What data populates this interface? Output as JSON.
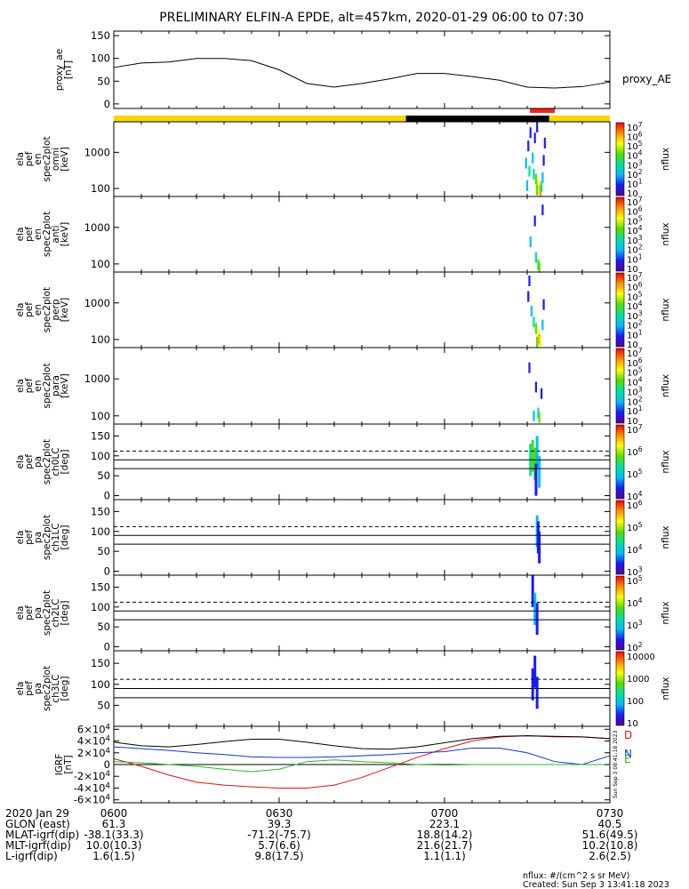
{
  "title": "PRELIMINARY ELFIN-A EPDE, alt=457km, 2020-01-29 06:00 to 07:30",
  "colors": {
    "day_bar": "#f5d800",
    "night_bar": "#000000",
    "science_zone": "#ff2020",
    "igrf_d": "#dd1111",
    "igrf_n": "#1133dd",
    "igrf_e": "#22bb22",
    "igrf_total": "#000000",
    "colorbar_stops": [
      "#ffffff",
      "#5a0099",
      "#1a1aff",
      "#00bfff",
      "#00e0a0",
      "#4ee000",
      "#ffff00",
      "#ff9000",
      "#ff0000"
    ]
  },
  "time_axis": {
    "range": [
      "06:00",
      "07:30"
    ],
    "ticks": [
      "0600",
      "0630",
      "0700",
      "0730"
    ]
  },
  "ephemeris": {
    "rows": [
      {
        "label": "2020 Jan 29",
        "values": [
          "0600",
          "0630",
          "0700",
          "0730"
        ]
      },
      {
        "label": "GLON (east)",
        "values": [
          "61.3",
          "39.3",
          "223.1",
          "40.5"
        ]
      },
      {
        "label": "MLAT-igrf(dip)",
        "values": [
          "-38.1(33.3)",
          "-71.2(-75.7)",
          "18.8(14.2)",
          "51.6(49.5)"
        ]
      },
      {
        "label": "MLT-igrf(dip)",
        "values": [
          "10.0(10.3)",
          "5.7(6.6)",
          "21.6(21.7)",
          "10.2(10.8)"
        ]
      },
      {
        "label": "L-igrf(dip)",
        "values": [
          "1.6(1.5)",
          "9.8(17.5)",
          "1.1(1.1)",
          "2.6(2.5)"
        ]
      }
    ]
  },
  "footer": {
    "units_line": "nflux: #/(cm^2 s sr MeV)",
    "created_line": "Created: Sun Sep  3 13:41:18 2023",
    "side_stamp": "Sun Sep 3 08:41:18 2023"
  },
  "chart_data": [
    {
      "id": "proxy_ae",
      "type": "line",
      "ylabel": [
        "proxy_ae",
        "[nT]"
      ],
      "legend": "proxy_AE",
      "yticks": [
        "0",
        "50",
        "100",
        "150"
      ],
      "ylim": [
        -10,
        160
      ],
      "x_minutes": [
        0,
        5,
        10,
        15,
        20,
        25,
        30,
        35,
        40,
        45,
        50,
        55,
        60,
        65,
        70,
        75,
        80,
        85,
        90
      ],
      "values": [
        80,
        90,
        92,
        100,
        100,
        95,
        75,
        45,
        37,
        45,
        55,
        67,
        67,
        60,
        52,
        37,
        35,
        38,
        48
      ]
    },
    {
      "id": "en_spec_omni",
      "type": "heatmap",
      "ylabel": [
        "ela",
        "pef",
        "en",
        "spec2plot",
        "omni",
        "[keV]"
      ],
      "yticks": [
        "100",
        "1000"
      ],
      "ylim_keV": [
        60,
        7000
      ],
      "log_y": true,
      "cbar_label": "nflux",
      "cbar_ticks": [
        "10",
        "10^1",
        "10^2",
        "10^3",
        "10^4",
        "10^5",
        "10^6",
        "10^7"
      ],
      "event_minutes": [
        74.5,
        78.5
      ],
      "cells": [
        {
          "t": 74.8,
          "e": 500,
          "l": 2
        },
        {
          "t": 75.2,
          "e": 1500,
          "l": 1
        },
        {
          "t": 75.6,
          "e": 3500,
          "l": 1
        },
        {
          "t": 76.0,
          "e": 700,
          "l": 2
        },
        {
          "t": 76.4,
          "e": 2500,
          "l": 1
        },
        {
          "t": 76.8,
          "e": 5000,
          "l": 1
        },
        {
          "t": 75.4,
          "e": 300,
          "l": 3
        },
        {
          "t": 76.2,
          "e": 250,
          "l": 3
        },
        {
          "t": 76.6,
          "e": 180,
          "l": 4
        },
        {
          "t": 77.0,
          "e": 130,
          "l": 5
        },
        {
          "t": 77.2,
          "e": 100,
          "l": 5
        },
        {
          "t": 76.8,
          "e": 90,
          "l": 4
        },
        {
          "t": 77.4,
          "e": 85,
          "l": 6
        },
        {
          "t": 77.6,
          "e": 110,
          "l": 3
        },
        {
          "t": 77.8,
          "e": 200,
          "l": 2
        },
        {
          "t": 78.0,
          "e": 600,
          "l": 1
        },
        {
          "t": 78.2,
          "e": 1800,
          "l": 1
        },
        {
          "t": 75.0,
          "e": 120,
          "l": 2
        }
      ]
    },
    {
      "id": "en_spec_anti",
      "type": "heatmap",
      "ylabel": [
        "ela",
        "pef",
        "en",
        "spec2plot",
        "anti",
        "[keV]"
      ],
      "yticks": [
        "100",
        "1000"
      ],
      "ylim_keV": [
        60,
        7000
      ],
      "log_y": true,
      "cbar_label": "nflux",
      "cbar_ticks": [
        "10",
        "10^1",
        "10^2",
        "10^3",
        "10^4",
        "10^5",
        "10^6",
        "10^7"
      ],
      "event_minutes": [
        74.5,
        78.5
      ],
      "cells": [
        {
          "t": 75.6,
          "e": 400,
          "l": 2
        },
        {
          "t": 76.4,
          "e": 1500,
          "l": 1
        },
        {
          "t": 77.8,
          "e": 3000,
          "l": 1
        },
        {
          "t": 76.6,
          "e": 150,
          "l": 3
        },
        {
          "t": 77.0,
          "e": 95,
          "l": 4
        },
        {
          "t": 77.2,
          "e": 80,
          "l": 4
        }
      ]
    },
    {
      "id": "en_spec_perp",
      "type": "heatmap",
      "ylabel": [
        "ela",
        "pef",
        "en",
        "spec2plot",
        "perp",
        "[keV]"
      ],
      "yticks": [
        "100",
        "1000"
      ],
      "ylim_keV": [
        60,
        7000
      ],
      "log_y": true,
      "cbar_label": "nflux",
      "cbar_ticks": [
        "10",
        "10^1",
        "10^2",
        "10^3",
        "10^4",
        "10^5",
        "10^6",
        "10^7"
      ],
      "event_minutes": [
        74.5,
        78.5
      ],
      "cells": [
        {
          "t": 75.2,
          "e": 1500,
          "l": 1
        },
        {
          "t": 75.8,
          "e": 600,
          "l": 2
        },
        {
          "t": 76.2,
          "e": 300,
          "l": 3
        },
        {
          "t": 76.6,
          "e": 200,
          "l": 4
        },
        {
          "t": 77.0,
          "e": 140,
          "l": 5
        },
        {
          "t": 77.2,
          "e": 100,
          "l": 6
        },
        {
          "t": 77.4,
          "e": 90,
          "l": 5
        },
        {
          "t": 76.8,
          "e": 85,
          "l": 4
        },
        {
          "t": 77.8,
          "e": 250,
          "l": 2
        },
        {
          "t": 78.0,
          "e": 900,
          "l": 1
        },
        {
          "t": 75.4,
          "e": 4000,
          "l": 1
        }
      ]
    },
    {
      "id": "en_spec_para",
      "type": "heatmap",
      "ylabel": [
        "ela",
        "pef",
        "en",
        "spec2plot",
        "para",
        "[keV]"
      ],
      "yticks": [
        "100",
        "1000"
      ],
      "ylim_keV": [
        60,
        7000
      ],
      "log_y": true,
      "cbar_label": "nflux",
      "cbar_ticks": [
        "10",
        "10^1",
        "10^2",
        "10^3",
        "10^4",
        "10^5",
        "10^6",
        "10^7"
      ],
      "event_minutes": [
        74.5,
        78.5
      ],
      "cells": [
        {
          "t": 75.4,
          "e": 2000,
          "l": 1
        },
        {
          "t": 76.6,
          "e": 600,
          "l": 1
        },
        {
          "t": 77.0,
          "e": 120,
          "l": 3
        },
        {
          "t": 77.2,
          "e": 90,
          "l": 4
        },
        {
          "t": 76.2,
          "e": 100,
          "l": 2
        },
        {
          "t": 77.6,
          "e": 400,
          "l": 1
        }
      ]
    },
    {
      "id": "pa_spec_ch0",
      "type": "heatmap",
      "ylabel": [
        "ela",
        "pef",
        "pa",
        "spec2plot",
        "ch0LC",
        "[deg]"
      ],
      "yticks": [
        "0",
        "50",
        "100",
        "150"
      ],
      "ylim": [
        -10,
        180
      ],
      "lines_solid": [
        68,
        90
      ],
      "lines_dashed": [
        112
      ],
      "cbar_label": "nflux",
      "cbar_ticks": [
        "10^4",
        "10^5",
        "10^6",
        "10^7"
      ],
      "event_minutes": [
        74.5,
        78.5
      ],
      "cells": [
        {
          "t": 75.6,
          "p": 90,
          "l": 3
        },
        {
          "t": 76.0,
          "p": 100,
          "l": 4
        },
        {
          "t": 76.4,
          "p": 80,
          "l": 4
        },
        {
          "t": 76.8,
          "p": 110,
          "l": 2
        },
        {
          "t": 77.2,
          "p": 60,
          "l": 2
        },
        {
          "t": 76.6,
          "p": 40,
          "l": 1
        }
      ]
    },
    {
      "id": "pa_spec_ch1",
      "type": "heatmap",
      "ylabel": [
        "ela",
        "pef",
        "pa",
        "spec2plot",
        "ch1LC",
        "[deg]"
      ],
      "yticks": [
        "0",
        "50",
        "100",
        "150"
      ],
      "ylim": [
        -10,
        180
      ],
      "lines_solid": [
        68,
        90
      ],
      "lines_dashed": [
        112
      ],
      "cbar_label": "nflux",
      "cbar_ticks": [
        "10^3",
        "10^4",
        "10^5",
        "10^6"
      ],
      "event_minutes": [
        74.5,
        78.5
      ],
      "cells": [
        {
          "t": 76.8,
          "p": 100,
          "l": 2
        },
        {
          "t": 77.0,
          "p": 85,
          "l": 1
        },
        {
          "t": 77.2,
          "p": 60,
          "l": 1
        }
      ]
    },
    {
      "id": "pa_spec_ch2",
      "type": "heatmap",
      "ylabel": [
        "ela",
        "pef",
        "pa",
        "spec2plot",
        "ch2LC",
        "[deg]"
      ],
      "yticks": [
        "0",
        "50",
        "100",
        "150"
      ],
      "ylim": [
        -10,
        180
      ],
      "lines_solid": [
        68,
        90
      ],
      "lines_dashed": [
        112
      ],
      "cbar_label": "nflux",
      "cbar_ticks": [
        "10^2",
        "10^3",
        "10^4",
        "10^5"
      ],
      "event_minutes": [
        74.5,
        78.5
      ],
      "cells": [
        {
          "t": 76.0,
          "p": 140,
          "l": 1
        },
        {
          "t": 76.4,
          "p": 95,
          "l": 2
        },
        {
          "t": 76.8,
          "p": 70,
          "l": 1
        }
      ]
    },
    {
      "id": "pa_spec_ch3",
      "type": "heatmap",
      "ylabel": [
        "ela",
        "pef",
        "pa",
        "spec2plot",
        "ch3LC",
        "[deg]"
      ],
      "yticks": [
        "50",
        "100",
        "150"
      ],
      "ylim": [
        0,
        180
      ],
      "lines_solid": [
        68,
        90
      ],
      "lines_dashed": [
        112
      ],
      "cbar_label": "nflux",
      "cbar_ticks": [
        "10",
        "100",
        "1000",
        "10000"
      ],
      "event_minutes": [
        74.5,
        78.5
      ],
      "cells": [
        {
          "t": 76.0,
          "p": 100,
          "l": 1
        },
        {
          "t": 76.4,
          "p": 130,
          "l": 1
        },
        {
          "t": 76.8,
          "p": 80,
          "l": 1
        }
      ]
    },
    {
      "id": "igrf",
      "type": "line",
      "ylabel": [
        "IGRF",
        "[nT]"
      ],
      "yticks": [
        "-6x10^4",
        "-4x10^4",
        "-2x10^4",
        "0",
        "2x10^4",
        "4x10^4",
        "6x10^4"
      ],
      "ylim": [
        -65000,
        65000
      ],
      "legend": [
        "D",
        "N",
        "E"
      ],
      "x_minutes": [
        0,
        5,
        10,
        15,
        20,
        25,
        30,
        35,
        40,
        45,
        50,
        55,
        60,
        65,
        70,
        75,
        80,
        85,
        90
      ],
      "series": [
        {
          "name": "D",
          "color_key": "igrf_d",
          "values": [
            10000,
            -3000,
            -18000,
            -30000,
            -35000,
            -38000,
            -40000,
            -40000,
            -35000,
            -22000,
            -5000,
            12000,
            27000,
            40000,
            47000,
            49000,
            47000,
            47000,
            44000
          ]
        },
        {
          "name": "N",
          "color_key": "igrf_n",
          "values": [
            30000,
            27000,
            24000,
            20000,
            17000,
            13000,
            12000,
            12000,
            13000,
            15000,
            17000,
            20000,
            22000,
            28000,
            28000,
            20000,
            5000,
            0,
            15000
          ]
        },
        {
          "name": "E",
          "color_key": "igrf_e",
          "values": [
            5000,
            3000,
            0,
            -3000,
            -8000,
            -12000,
            -8000,
            5000,
            8000,
            5000,
            3000,
            0,
            -1000,
            0,
            0,
            0,
            0,
            0,
            0
          ]
        },
        {
          "name": "",
          "color_key": "igrf_total",
          "values": [
            38000,
            32000,
            30000,
            34000,
            39000,
            43000,
            43000,
            38000,
            32000,
            27000,
            26000,
            30000,
            37000,
            44000,
            48000,
            49000,
            48000,
            47000,
            44000
          ]
        }
      ]
    }
  ]
}
